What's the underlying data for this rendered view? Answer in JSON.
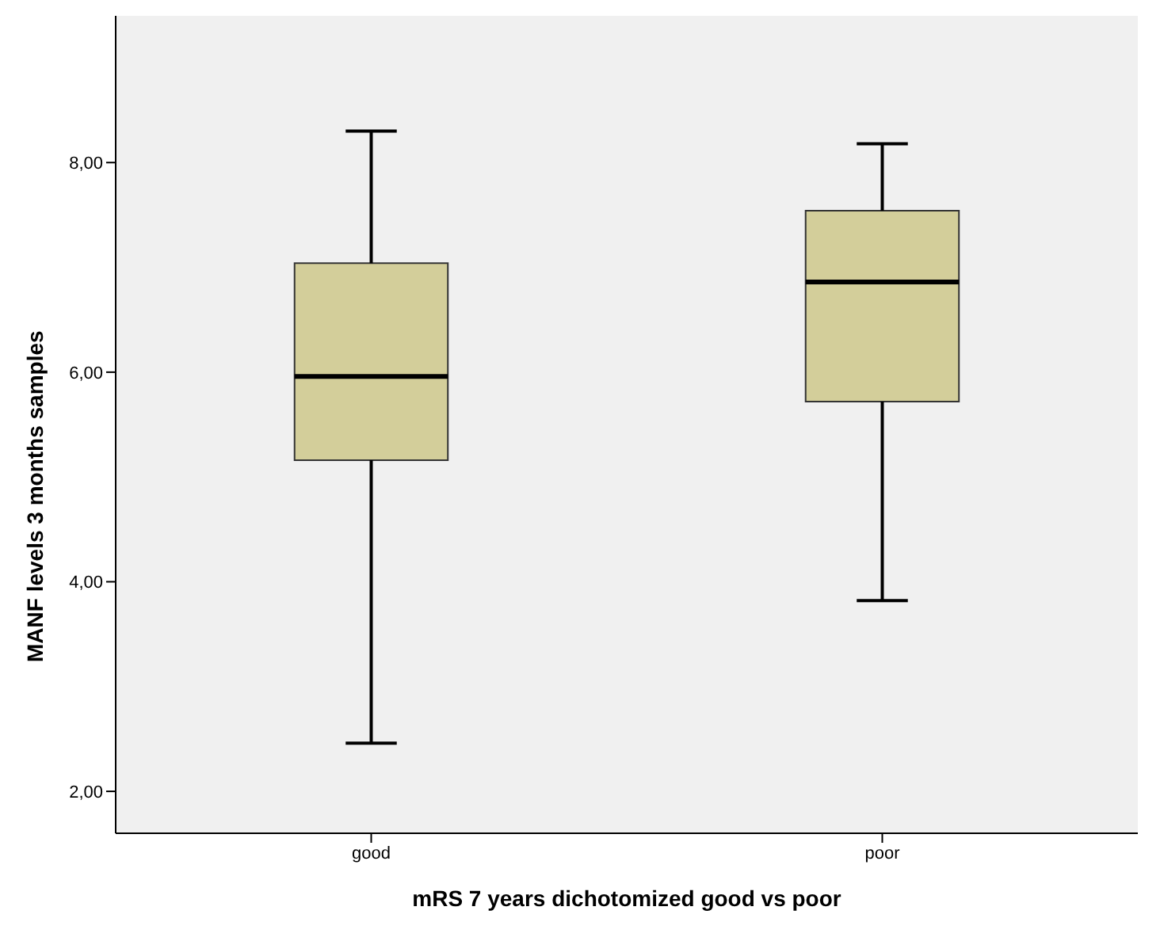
{
  "chart_data": {
    "type": "box",
    "xlabel": "mRS 7 years dichotomized good vs poor",
    "ylabel": "MANF levels 3 months samples",
    "categories": [
      "good",
      "poor"
    ],
    "color": "#d3ce9a",
    "boxes": [
      {
        "low": 2.46,
        "q1": 5.16,
        "median": 5.96,
        "q3": 7.04,
        "high": 8.3
      },
      {
        "low": 3.82,
        "q1": 5.72,
        "median": 6.86,
        "q3": 7.54,
        "high": 8.18
      }
    ],
    "ylim": [
      1.6,
      9.4
    ],
    "yticks": [
      {
        "value": 2,
        "label": "2,00"
      },
      {
        "value": 4,
        "label": "4,00"
      },
      {
        "value": 6,
        "label": "6,00"
      },
      {
        "value": 8,
        "label": "8,00"
      }
    ]
  }
}
